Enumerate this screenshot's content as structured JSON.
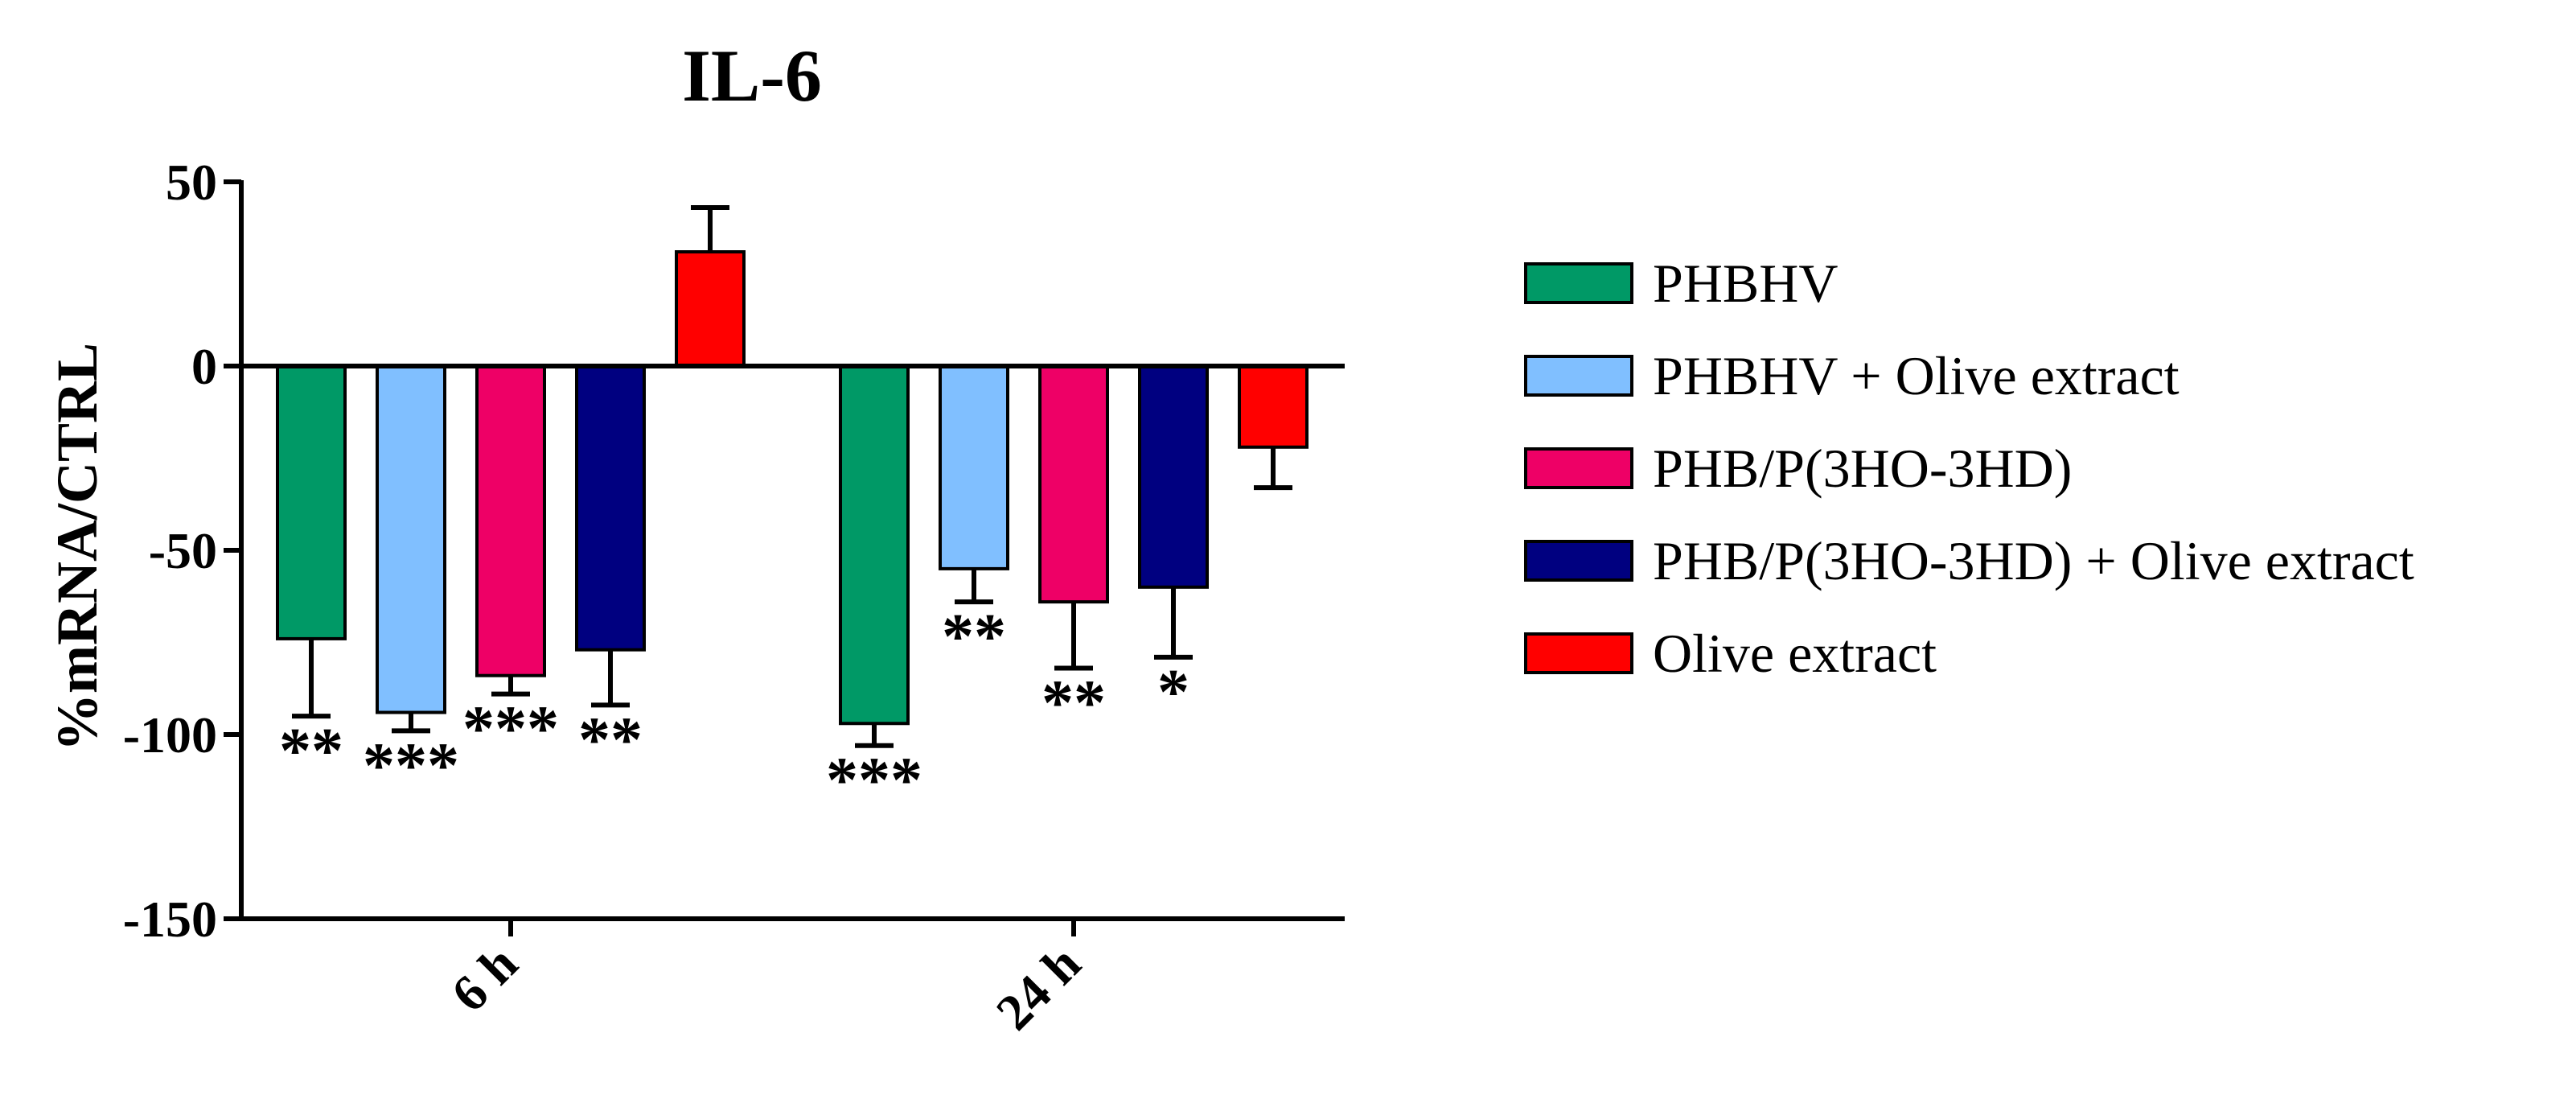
{
  "chart_data": {
    "type": "bar",
    "title": "IL-6",
    "xlabel": "",
    "ylabel": "%mRNA/CTRL",
    "ylim": [
      -150,
      50
    ],
    "yticks": [
      50,
      0,
      -50,
      -100,
      -150
    ],
    "categories": [
      "6 h",
      "24 h"
    ],
    "series": [
      {
        "name": "PHBHV",
        "color": "#009966",
        "values": [
          -74,
          -97
        ],
        "errors": [
          21,
          6
        ],
        "significance": [
          "**",
          "***"
        ]
      },
      {
        "name": "PHBHV + Olive extract",
        "color": "#80bfff",
        "values": [
          -94,
          -55
        ],
        "errors": [
          5,
          9
        ],
        "significance": [
          "***",
          "**"
        ]
      },
      {
        "name": "PHB/P(3HO-3HD)",
        "color": "#ee0066",
        "values": [
          -84,
          -64
        ],
        "errors": [
          5,
          18
        ],
        "significance": [
          "***",
          "**"
        ]
      },
      {
        "name": "PHB/P(3HO-3HD) + Olive extract",
        "color": "#000080",
        "values": [
          -77,
          -60
        ],
        "errors": [
          15,
          19
        ],
        "significance": [
          "**",
          "*"
        ]
      },
      {
        "name": "Olive extract",
        "color": "#ff0000",
        "values": [
          31,
          -22
        ],
        "errors": [
          12,
          11
        ],
        "significance": [
          "",
          ""
        ]
      }
    ]
  }
}
